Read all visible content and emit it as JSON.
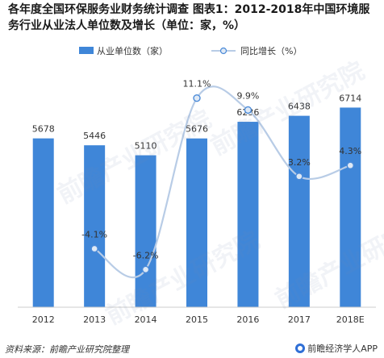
{
  "title": "各年度全国环保服务业财务统计调查 图表1：2012-2018年中国环境服务行业从业法人单位数及增长（单位：家，%）",
  "footer": {
    "source": "资料来源：前瞻产业研究院整理",
    "brand": "前瞻经济学人APP"
  },
  "watermark": "前瞻产业研究院",
  "colors": {
    "bar": "#3f86d8",
    "line": "#b8cce6",
    "marker_fill": "#dfe9f5",
    "marker_stroke": "#4a8ad8"
  },
  "chart_data": {
    "type": "bar",
    "categories": [
      "2012",
      "2013",
      "2014",
      "2015",
      "2016",
      "2017",
      "2018E"
    ],
    "series": [
      {
        "name": "从业单位数（家）",
        "type": "bar",
        "axis": "left",
        "values": [
          5678,
          5446,
          5110,
          5676,
          6236,
          6438,
          6714
        ],
        "labels": [
          "5678",
          "5446",
          "5110",
          "5676",
          "6236",
          "6438",
          "6714"
        ]
      },
      {
        "name": "同比增长（%）",
        "type": "line",
        "axis": "right",
        "values": [
          null,
          -4.1,
          -6.2,
          11.1,
          9.9,
          3.2,
          4.3
        ],
        "labels": [
          "",
          "-4.1%",
          "-6.2%",
          "11.1%",
          "9.9%",
          "3.2%",
          "4.3%"
        ]
      }
    ],
    "ylim_left": [
      0,
      8000
    ],
    "ylim_right": [
      -10,
      14
    ],
    "legend": "top-center",
    "grid": false
  }
}
